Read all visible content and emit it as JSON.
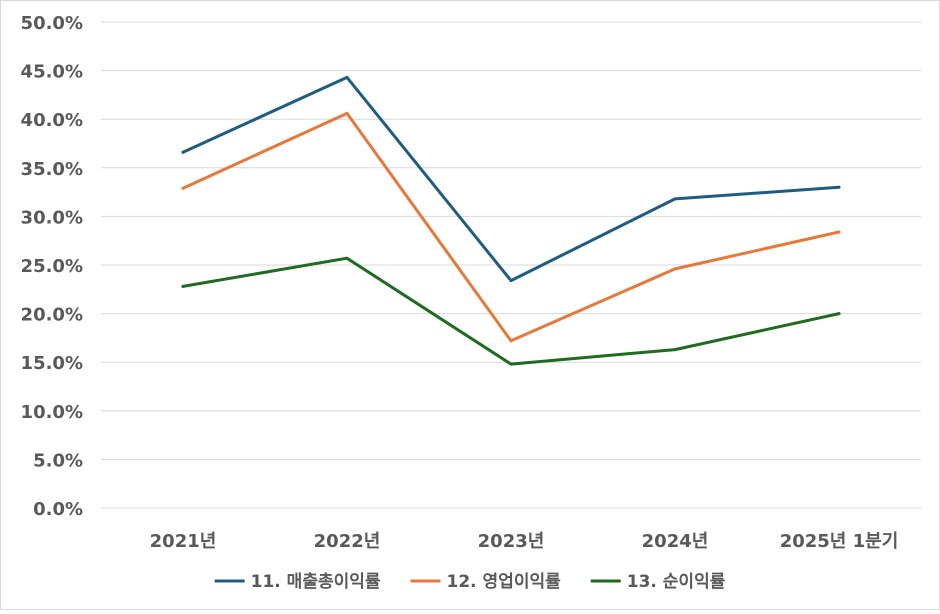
{
  "chart_data": {
    "type": "line",
    "title": "",
    "xlabel": "",
    "ylabel": "",
    "categories": [
      "2021년",
      "2022년",
      "2023년",
      "2024년",
      "2025년 1분기"
    ],
    "ylim": [
      0,
      50
    ],
    "yticks": [
      0,
      5,
      10,
      15,
      20,
      25,
      30,
      35,
      40,
      45,
      50
    ],
    "ytick_labels": [
      "0.0%",
      "5.0%",
      "10.0%",
      "15.0%",
      "20.0%",
      "25.0%",
      "30.0%",
      "35.0%",
      "40.0%",
      "45.0%",
      "50.0%"
    ],
    "grid": true,
    "legend_position": "bottom",
    "series": [
      {
        "name": "11. 매출총이익률",
        "color": "#1f5c80",
        "values": [
          36.6,
          44.3,
          23.4,
          31.8,
          33.0
        ]
      },
      {
        "name": "12. 영업이익률",
        "color": "#e8783a",
        "values": [
          32.9,
          40.6,
          17.2,
          24.6,
          28.4
        ]
      },
      {
        "name": "13. 순이익률",
        "color": "#1f6b1f",
        "values": [
          22.8,
          25.7,
          14.8,
          16.3,
          20.0
        ]
      }
    ]
  }
}
